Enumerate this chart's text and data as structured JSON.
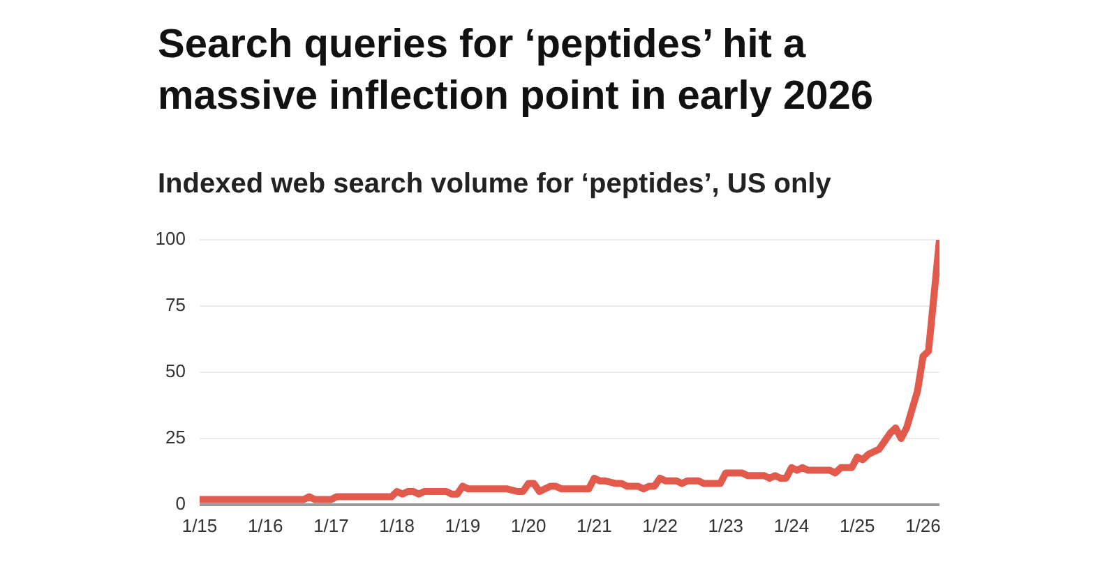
{
  "chart_data": {
    "type": "line",
    "title": "Search queries for ‘peptides’ hit a massive inflection point in early 2026",
    "subtitle": "Indexed web search volume for ‘peptides’, US only",
    "x": [
      "2015-01",
      "2016-08",
      "2016-09",
      "2016-10",
      "2017-01",
      "2017-02",
      "2017-12",
      "2018-01",
      "2018-02",
      "2018-03",
      "2018-04",
      "2018-05",
      "2018-06",
      "2018-10",
      "2018-11",
      "2018-12",
      "2019-01",
      "2019-02",
      "2019-09",
      "2019-11",
      "2019-12",
      "2020-01",
      "2020-02",
      "2020-03",
      "2020-04",
      "2020-05",
      "2020-06",
      "2020-07",
      "2020-12",
      "2021-01",
      "2021-02",
      "2021-03",
      "2021-05",
      "2021-06",
      "2021-07",
      "2021-09",
      "2021-10",
      "2021-11",
      "2021-12",
      "2022-01",
      "2022-02",
      "2022-04",
      "2022-05",
      "2022-06",
      "2022-08",
      "2022-09",
      "2022-12",
      "2023-01",
      "2023-04",
      "2023-05",
      "2023-08",
      "2023-09",
      "2023-10",
      "2023-11",
      "2023-12",
      "2024-01",
      "2024-02",
      "2024-03",
      "2024-04",
      "2024-08",
      "2024-09",
      "2024-10",
      "2024-12",
      "2025-01",
      "2025-02",
      "2025-03",
      "2025-04",
      "2025-05",
      "2025-06",
      "2025-07",
      "2025-08",
      "2025-09",
      "2025-10",
      "2025-11",
      "2025-12",
      "2026-01",
      "2026-02",
      "2026-04"
    ],
    "values": [
      2,
      2,
      3,
      2,
      2,
      3,
      3,
      5,
      4,
      5,
      5,
      4,
      5,
      5,
      4,
      4,
      7,
      6,
      6,
      5,
      5,
      8,
      8,
      5,
      6,
      7,
      7,
      6,
      6,
      10,
      9,
      9,
      8,
      8,
      7,
      7,
      6,
      7,
      7,
      10,
      9,
      9,
      8,
      9,
      9,
      8,
      8,
      12,
      12,
      11,
      11,
      10,
      11,
      10,
      10,
      14,
      13,
      14,
      13,
      13,
      12,
      14,
      14,
      18,
      17,
      19,
      20,
      21,
      24,
      27,
      29,
      25,
      29,
      36,
      43,
      56,
      58,
      100
    ],
    "color": "#e25a4b",
    "xlim": [
      "2015-01",
      "2026-04"
    ],
    "xticks": [
      {
        "value": "2015-01",
        "label": "1/15"
      },
      {
        "value": "2016-01",
        "label": "1/16"
      },
      {
        "value": "2017-01",
        "label": "1/17"
      },
      {
        "value": "2018-01",
        "label": "1/18"
      },
      {
        "value": "2019-01",
        "label": "1/19"
      },
      {
        "value": "2020-01",
        "label": "1/20"
      },
      {
        "value": "2021-01",
        "label": "1/21"
      },
      {
        "value": "2022-01",
        "label": "1/22"
      },
      {
        "value": "2023-01",
        "label": "1/23"
      },
      {
        "value": "2024-01",
        "label": "1/24"
      },
      {
        "value": "2025-01",
        "label": "1/25"
      },
      {
        "value": "2026-01",
        "label": "1/26"
      }
    ],
    "ylim": [
      0,
      100
    ],
    "yticks": [
      0,
      25,
      50,
      75,
      100
    ],
    "grid": "y",
    "marker": "none",
    "line_style": "solid"
  }
}
